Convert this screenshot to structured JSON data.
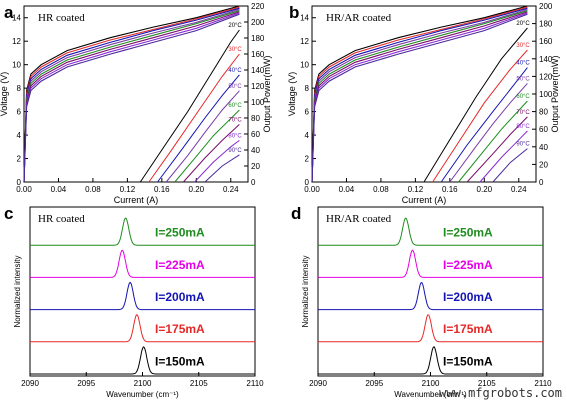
{
  "chart_data": [
    {
      "id": "a",
      "type": "line",
      "panel_label": "a",
      "annotation": "HR coated",
      "xlabel": "Current (A)",
      "ylabel": "Voltage (V)",
      "ylabel2": "Output Power(mW)",
      "xlim": [
        0,
        0.26
      ],
      "ylim": [
        0,
        15
      ],
      "ylim2": [
        0,
        220
      ],
      "xticks": [
        "0.00",
        "0.04",
        "0.08",
        "0.12",
        "0.16",
        "0.20",
        "0.24"
      ],
      "yticks": [
        "0",
        "2",
        "4",
        "6",
        "8",
        "10",
        "12",
        "14"
      ],
      "yticks2": [
        "0",
        "20",
        "40",
        "60",
        "80",
        "100",
        "120",
        "140",
        "160",
        "180",
        "200",
        "220"
      ],
      "voltage_series": [
        {
          "temp": "20°C",
          "x": [
            0,
            0.003,
            0.008,
            0.02,
            0.05,
            0.1,
            0.15,
            0.2,
            0.25
          ],
          "y": [
            0,
            7.8,
            9.2,
            10.0,
            11.2,
            12.3,
            13.2,
            14.0,
            15.0
          ]
        },
        {
          "temp": "30°C",
          "x": [
            0,
            0.003,
            0.008,
            0.02,
            0.05,
            0.1,
            0.15,
            0.2,
            0.25
          ],
          "y": [
            0,
            7.6,
            9.0,
            9.8,
            11.0,
            12.1,
            13.0,
            13.9,
            14.9
          ]
        },
        {
          "temp": "40°C",
          "x": [
            0,
            0.003,
            0.008,
            0.02,
            0.05,
            0.1,
            0.15,
            0.2,
            0.25
          ],
          "y": [
            0,
            7.4,
            8.8,
            9.6,
            10.8,
            11.9,
            12.9,
            13.8,
            14.8
          ]
        },
        {
          "temp": "50°C",
          "x": [
            0,
            0.003,
            0.008,
            0.02,
            0.05,
            0.1,
            0.15,
            0.2,
            0.25
          ],
          "y": [
            0,
            7.2,
            8.6,
            9.4,
            10.6,
            11.7,
            12.7,
            13.6,
            14.7
          ]
        },
        {
          "temp": "60°C",
          "x": [
            0,
            0.003,
            0.008,
            0.02,
            0.05,
            0.1,
            0.15,
            0.2,
            0.25
          ],
          "y": [
            0,
            7.0,
            8.4,
            9.2,
            10.4,
            11.5,
            12.5,
            13.5,
            14.6
          ]
        },
        {
          "temp": "70°C",
          "x": [
            0,
            0.003,
            0.008,
            0.02,
            0.05,
            0.1,
            0.15,
            0.2,
            0.25
          ],
          "y": [
            0,
            6.8,
            8.2,
            9.0,
            10.2,
            11.3,
            12.3,
            13.3,
            14.5
          ]
        },
        {
          "temp": "80°C",
          "x": [
            0,
            0.003,
            0.008,
            0.02,
            0.05,
            0.1,
            0.15,
            0.2,
            0.25
          ],
          "y": [
            0,
            6.6,
            8.0,
            8.8,
            10.0,
            11.1,
            12.1,
            13.1,
            14.4
          ]
        },
        {
          "temp": "90°C",
          "x": [
            0,
            0.003,
            0.008,
            0.02,
            0.05,
            0.1,
            0.15,
            0.2,
            0.25
          ],
          "y": [
            0,
            6.4,
            7.8,
            8.6,
            9.8,
            10.9,
            11.9,
            12.9,
            14.3
          ]
        }
      ],
      "power_series": [
        {
          "temp": "20°C",
          "x": [
            0.135,
            0.16,
            0.19,
            0.22,
            0.24,
            0.25
          ],
          "y": [
            0,
            40,
            88,
            140,
            175,
            190
          ]
        },
        {
          "temp": "30°C",
          "x": [
            0.145,
            0.17,
            0.2,
            0.23,
            0.25
          ],
          "y": [
            0,
            38,
            85,
            132,
            160
          ]
        },
        {
          "temp": "40°C",
          "x": [
            0.155,
            0.18,
            0.21,
            0.23,
            0.25
          ],
          "y": [
            0,
            36,
            80,
            108,
            134
          ]
        },
        {
          "temp": "50°C",
          "x": [
            0.165,
            0.19,
            0.21,
            0.23,
            0.25
          ],
          "y": [
            0,
            33,
            62,
            90,
            114
          ]
        },
        {
          "temp": "60°C",
          "x": [
            0.175,
            0.2,
            0.22,
            0.25
          ],
          "y": [
            0,
            32,
            58,
            90
          ]
        },
        {
          "temp": "70°C",
          "x": [
            0.185,
            0.21,
            0.23,
            0.25
          ],
          "y": [
            0,
            30,
            52,
            72
          ]
        },
        {
          "temp": "80°C",
          "x": [
            0.198,
            0.22,
            0.24,
            0.25
          ],
          "y": [
            0,
            25,
            44,
            52
          ]
        },
        {
          "temp": "90°C",
          "x": [
            0.21,
            0.23,
            0.25
          ],
          "y": [
            0,
            20,
            34
          ]
        }
      ]
    },
    {
      "id": "b",
      "type": "line",
      "panel_label": "b",
      "annotation": "HR/AR coated",
      "xlabel": "Current (A)",
      "ylabel": "Voltage (V)",
      "ylabel2": "Output Power(mW)",
      "xlim": [
        0,
        0.26
      ],
      "ylim": [
        0,
        15
      ],
      "ylim2": [
        0,
        200
      ],
      "xticks": [
        "0.00",
        "0.04",
        "0.08",
        "0.12",
        "0.16",
        "0.20",
        "0.24"
      ],
      "yticks": [
        "0",
        "2",
        "4",
        "6",
        "8",
        "10",
        "12",
        "14"
      ],
      "yticks2": [
        "0",
        "20",
        "40",
        "60",
        "80",
        "100",
        "120",
        "140",
        "160",
        "180",
        "200"
      ],
      "voltage_series": [
        {
          "temp": "20°C",
          "x": [
            0,
            0.003,
            0.008,
            0.02,
            0.05,
            0.1,
            0.15,
            0.2,
            0.25
          ],
          "y": [
            0,
            7.8,
            9.2,
            10.0,
            11.2,
            12.3,
            13.2,
            14.0,
            15.0
          ]
        },
        {
          "temp": "30°C",
          "x": [
            0,
            0.003,
            0.008,
            0.02,
            0.05,
            0.1,
            0.15,
            0.2,
            0.25
          ],
          "y": [
            0,
            7.6,
            9.0,
            9.8,
            11.0,
            12.1,
            13.0,
            13.9,
            14.9
          ]
        },
        {
          "temp": "40°C",
          "x": [
            0,
            0.003,
            0.008,
            0.02,
            0.05,
            0.1,
            0.15,
            0.2,
            0.25
          ],
          "y": [
            0,
            7.4,
            8.8,
            9.6,
            10.8,
            11.9,
            12.9,
            13.8,
            14.8
          ]
        },
        {
          "temp": "50°C",
          "x": [
            0,
            0.003,
            0.008,
            0.02,
            0.05,
            0.1,
            0.15,
            0.2,
            0.25
          ],
          "y": [
            0,
            7.2,
            8.6,
            9.4,
            10.6,
            11.7,
            12.7,
            13.6,
            14.7
          ]
        },
        {
          "temp": "60°C",
          "x": [
            0,
            0.003,
            0.008,
            0.02,
            0.05,
            0.1,
            0.15,
            0.2,
            0.25
          ],
          "y": [
            0,
            7.0,
            8.4,
            9.2,
            10.4,
            11.5,
            12.5,
            13.5,
            14.6
          ]
        },
        {
          "temp": "70°C",
          "x": [
            0,
            0.003,
            0.008,
            0.02,
            0.05,
            0.1,
            0.15,
            0.2,
            0.25
          ],
          "y": [
            0,
            6.8,
            8.2,
            9.0,
            10.2,
            11.3,
            12.3,
            13.3,
            14.5
          ]
        },
        {
          "temp": "80°C",
          "x": [
            0,
            0.003,
            0.008,
            0.02,
            0.05,
            0.1,
            0.15,
            0.2,
            0.25
          ],
          "y": [
            0,
            6.6,
            8.0,
            8.8,
            10.0,
            11.1,
            12.1,
            13.1,
            14.4
          ]
        },
        {
          "temp": "90°C",
          "x": [
            0,
            0.003,
            0.008,
            0.02,
            0.05,
            0.1,
            0.15,
            0.2,
            0.25
          ],
          "y": [
            0,
            6.4,
            7.8,
            8.6,
            9.8,
            10.9,
            11.9,
            12.9,
            14.3
          ]
        }
      ],
      "power_series": [
        {
          "temp": "20°C",
          "x": [
            0.13,
            0.16,
            0.19,
            0.22,
            0.25
          ],
          "y": [
            0,
            48,
            96,
            140,
            175
          ]
        },
        {
          "temp": "30°C",
          "x": [
            0.14,
            0.17,
            0.2,
            0.23,
            0.25
          ],
          "y": [
            0,
            45,
            90,
            128,
            150
          ]
        },
        {
          "temp": "40°C",
          "x": [
            0.15,
            0.18,
            0.21,
            0.23,
            0.25
          ],
          "y": [
            0,
            42,
            80,
            105,
            130
          ]
        },
        {
          "temp": "50°C",
          "x": [
            0.16,
            0.19,
            0.21,
            0.23,
            0.25
          ],
          "y": [
            0,
            40,
            66,
            90,
            112
          ]
        },
        {
          "temp": "60°C",
          "x": [
            0.17,
            0.2,
            0.22,
            0.25
          ],
          "y": [
            0,
            36,
            60,
            92
          ]
        },
        {
          "temp": "70°C",
          "x": [
            0.18,
            0.21,
            0.23,
            0.25
          ],
          "y": [
            0,
            32,
            54,
            74
          ]
        },
        {
          "temp": "80°C",
          "x": [
            0.195,
            0.22,
            0.24,
            0.25
          ],
          "y": [
            0,
            28,
            48,
            58
          ]
        },
        {
          "temp": "90°C",
          "x": [
            0.21,
            0.23,
            0.25
          ],
          "y": [
            0,
            22,
            38
          ]
        }
      ]
    },
    {
      "id": "c",
      "type": "line",
      "panel_label": "c",
      "annotation": "HR coated",
      "xlabel": "Wavenumber (cm⁻¹)",
      "ylabel": "Normalized intensity",
      "xlim": [
        2090,
        2110
      ],
      "xticks": [
        "2090",
        "2095",
        "2100",
        "2105",
        "2110"
      ],
      "peak_width": 0.28,
      "series": [
        {
          "name": "I=250mA",
          "peak": 2098.5,
          "color": "#1e8c1e"
        },
        {
          "name": "I=225mA",
          "peak": 2098.2,
          "color": "#e600e6"
        },
        {
          "name": "I=200mA",
          "peak": 2098.9,
          "color": "#1414b4"
        },
        {
          "name": "I=175mA",
          "peak": 2099.5,
          "color": "#e62828"
        },
        {
          "name": "I=150mA",
          "peak": 2100.1,
          "color": "#000000"
        }
      ]
    },
    {
      "id": "d",
      "type": "line",
      "panel_label": "d",
      "annotation": "HR/AR coated",
      "xlabel": "Wavenumber (cm⁻¹)",
      "ylabel": "Normalized intensity",
      "xlim": [
        2090,
        2110
      ],
      "xticks": [
        "2090",
        "2095",
        "2100",
        "2105",
        "2110"
      ],
      "peak_width": 0.28,
      "series": [
        {
          "name": "I=250mA",
          "peak": 2097.8,
          "color": "#1e8c1e"
        },
        {
          "name": "I=225mA",
          "peak": 2098.4,
          "color": "#e600e6"
        },
        {
          "name": "I=200mA",
          "peak": 2099.2,
          "color": "#1414b4"
        },
        {
          "name": "I=175mA",
          "peak": 2099.8,
          "color": "#e62828"
        },
        {
          "name": "I=150mA",
          "peak": 2100.3,
          "color": "#000000"
        }
      ]
    }
  ],
  "temperature_colors": [
    "#000000",
    "#e62828",
    "#1414b4",
    "#7a3aa8",
    "#1e8c1e",
    "#7a0a6a",
    "#8a2ad6",
    "#4a2a9a"
  ],
  "watermark": "www.mfgrobots.com"
}
